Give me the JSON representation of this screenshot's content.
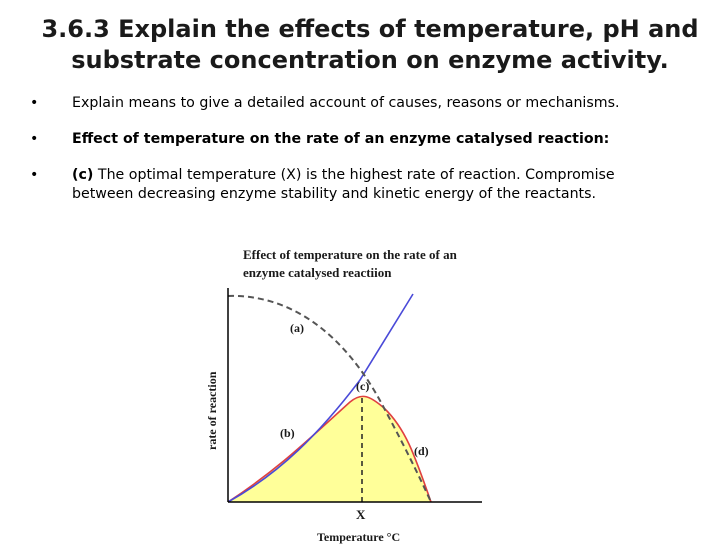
{
  "slide": {
    "title_line1": "3.6.3 Explain the effects of temperature, pH and",
    "title_line2": "substrate concentration on enzyme activity.",
    "bullets": [
      {
        "text": "Explain means to give a detailed account of causes, reasons or mechanisms."
      },
      {
        "text": "Effect of temperature on the rate of an enzyme catalysed reaction:"
      },
      {
        "prefix": "(c)",
        "text_line1": " The optimal temperature (X) is the highest rate of reaction. Compromise",
        "text_line2": "between decreasing enzyme stability and kinetic energy of the reactants."
      }
    ]
  },
  "chart_data": {
    "type": "line",
    "title_line1": "Effect of temperature on the rate of an",
    "title_line2": "enzyme catalysed  reactiion",
    "xlabel": "Temperature °C",
    "ylabel": "rate of reaction",
    "x_marker_label": "X",
    "curve_labels": [
      "(a)",
      "(b)",
      "(c)",
      "(d)"
    ],
    "colors": {
      "kinetic_line": "#4a4ad8",
      "observed_curve": "#e04040",
      "fill": "#ffff99",
      "stability_dashed": "#555555"
    },
    "grid": false
  }
}
